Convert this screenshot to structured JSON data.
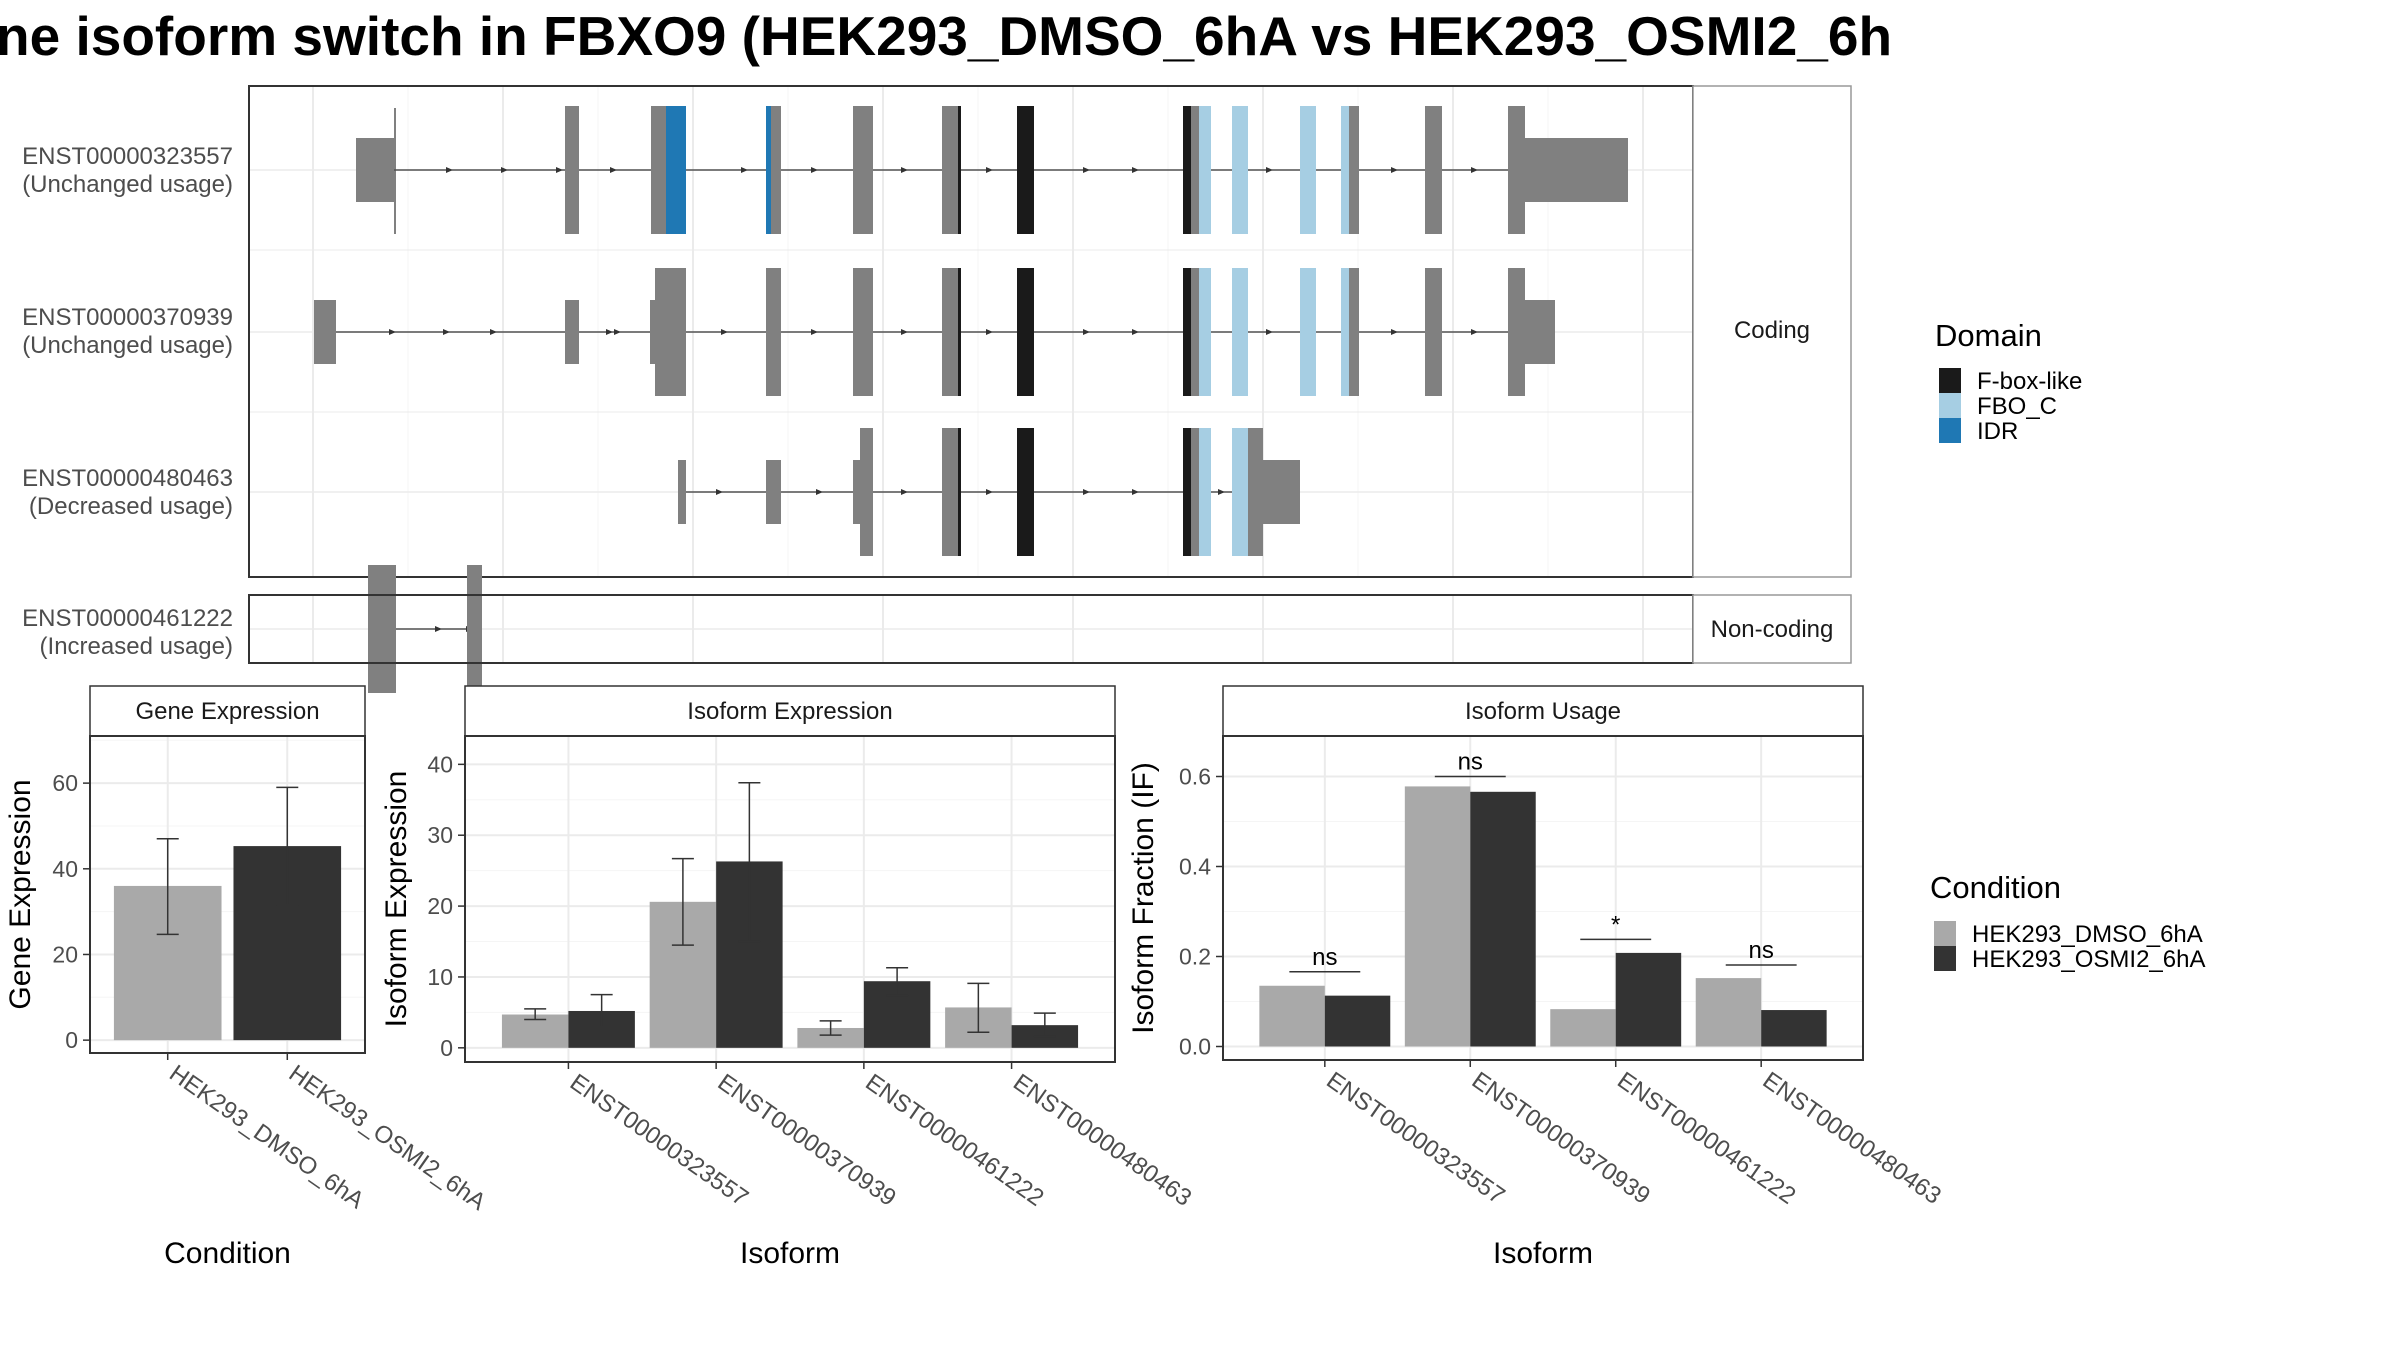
{
  "title": "ne isoform switch in FBXO9 (HEK293_DMSO_6hA vs HEK293_OSMI2_6h",
  "colors": {
    "dmso": "#A9A9A9",
    "osmi": "#333333",
    "exon": "#808080",
    "fbox": "#1A1A1A",
    "fbo_c": "#A6CEE3",
    "idr": "#1F78B4",
    "grid": "#EBEBEB",
    "strip_bg": "#FFFFFF"
  },
  "structure": {
    "coding_strip": "Coding",
    "noncoding_strip": "Non-coding",
    "transcripts": [
      {
        "id": "ENST00000323557",
        "usage": "(Unchanged usage)"
      },
      {
        "id": "ENST00000370939",
        "usage": "(Unchanged usage)"
      },
      {
        "id": "ENST00000480463",
        "usage": "(Decreased usage)"
      },
      {
        "id": "ENST00000461222",
        "usage": "(Increased usage)"
      }
    ]
  },
  "domain_legend": {
    "title": "Domain",
    "items": [
      {
        "label": "F-box-like",
        "color": "#1A1A1A"
      },
      {
        "label": "FBO_C",
        "color": "#A6CEE3"
      },
      {
        "label": "IDR",
        "color": "#1F78B4"
      }
    ]
  },
  "condition_legend": {
    "title": "Condition",
    "items": [
      {
        "label": "HEK293_DMSO_6hA",
        "color": "#A9A9A9"
      },
      {
        "label": "HEK293_OSMI2_6hA",
        "color": "#333333"
      }
    ]
  },
  "chart_data": [
    {
      "type": "bar",
      "title": "Gene Expression",
      "xlabel": "Condition",
      "ylabel": "Gene Expression",
      "categories": [
        "HEK293_DMSO_6hA",
        "HEK293_OSMI2_6hA"
      ],
      "values": [
        36,
        45.3
      ],
      "errors": [
        [
          24.7,
          47
        ],
        [
          31.5,
          59
        ]
      ],
      "ylim": [
        -3,
        71
      ],
      "yticks": [
        0,
        20,
        40,
        60
      ],
      "grid": true
    },
    {
      "type": "bar",
      "title": "Isoform Expression",
      "xlabel": "Isoform",
      "ylabel": "Isoform Expression",
      "categories": [
        "ENST00000323557",
        "ENST00000370939",
        "ENST00000461222",
        "ENST00000480463"
      ],
      "series": [
        {
          "name": "HEK293_DMSO_6hA",
          "values": [
            4.7,
            20.6,
            2.8,
            5.7
          ],
          "errors": [
            [
              4,
              5.5
            ],
            [
              14.5,
              26.7
            ],
            [
              1.8,
              3.8
            ],
            [
              2.2,
              9.1
            ]
          ]
        },
        {
          "name": "HEK293_OSMI2_6hA",
          "values": [
            5.2,
            26.3,
            9.4,
            3.2
          ],
          "errors": [
            [
              2.9,
              7.5
            ],
            [
              15,
              37.4
            ],
            [
              7.4,
              11.3
            ],
            [
              1.6,
              4.9
            ]
          ]
        }
      ],
      "ylim": [
        -2,
        44
      ],
      "yticks": [
        0,
        10,
        20,
        30,
        40
      ],
      "grid": true
    },
    {
      "type": "bar",
      "title": "Isoform Usage",
      "xlabel": "Isoform",
      "ylabel": "Isoform Fraction (IF)",
      "categories": [
        "ENST00000323557",
        "ENST00000370939",
        "ENST00000461222",
        "ENST00000480463"
      ],
      "series": [
        {
          "name": "HEK293_DMSO_6hA",
          "values": [
            0.135,
            0.578,
            0.083,
            0.152
          ]
        },
        {
          "name": "HEK293_OSMI2_6hA",
          "values": [
            0.113,
            0.566,
            0.208,
            0.081
          ]
        }
      ],
      "significance": [
        {
          "label": "ns",
          "y": 0.166
        },
        {
          "label": "ns",
          "y": 0.6
        },
        {
          "label": "*",
          "y": 0.238
        },
        {
          "label": "ns",
          "y": 0.181
        }
      ],
      "ylim": [
        -0.03,
        0.69
      ],
      "yticks": [
        "0.0",
        "0.2",
        "0.4",
        "0.6"
      ],
      "grid": true
    }
  ]
}
